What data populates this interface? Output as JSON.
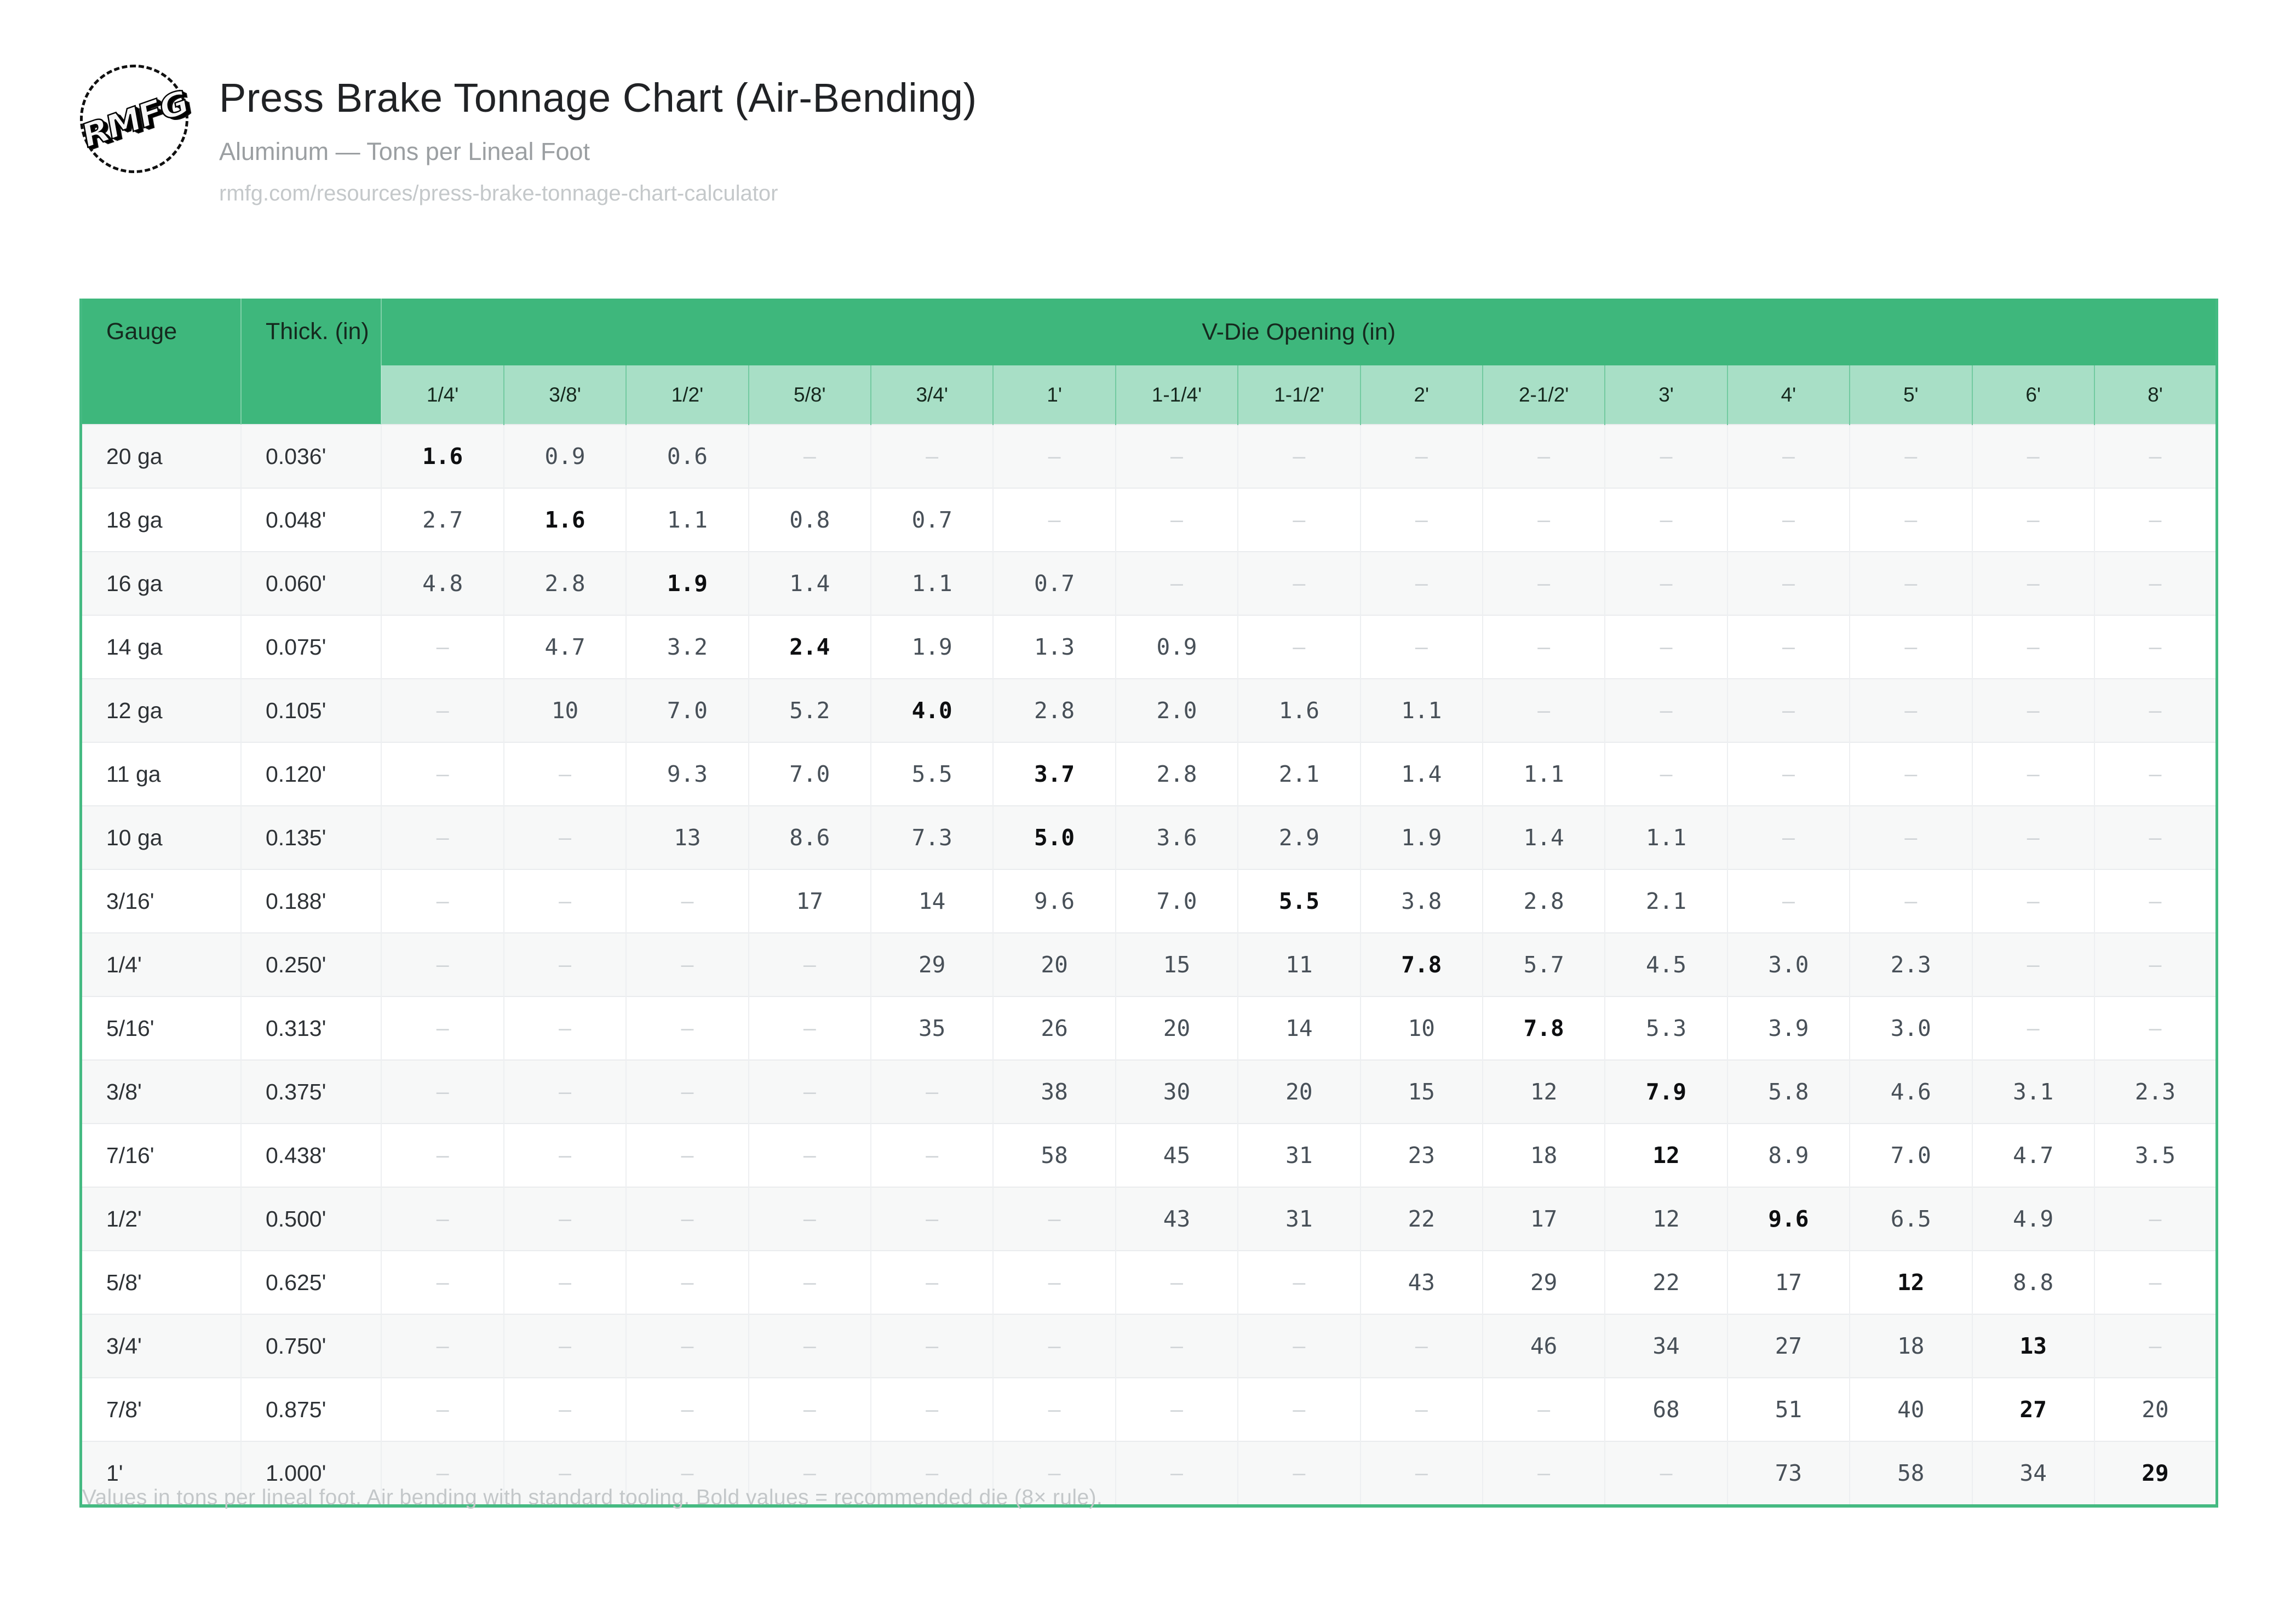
{
  "header": {
    "logo_text": "RMFG",
    "title": "Press Brake Tonnage Chart (Air-Bending)",
    "subtitle": "Aluminum — Tons per Lineal Foot",
    "url": "rmfg.com/resources/press-brake-tonnage-chart-calculator"
  },
  "table": {
    "col_gauge": "Gauge",
    "col_thickness": "Thick. (in)",
    "col_group": "V-Die Opening (in)",
    "die_openings": [
      "1/4'",
      "3/8'",
      "1/2'",
      "5/8'",
      "3/4'",
      "1'",
      "1-1/4'",
      "1-1/2'",
      "2'",
      "2-1/2'",
      "3'",
      "4'",
      "5'",
      "6'",
      "8'"
    ],
    "empty_marker": "–",
    "rows": [
      {
        "gauge": "20 ga",
        "thickness": "0.036'",
        "bold_index": 0,
        "values": [
          "1.6",
          "0.9",
          "0.6",
          "",
          "",
          "",
          "",
          "",
          "",
          "",
          "",
          "",
          "",
          "",
          ""
        ]
      },
      {
        "gauge": "18 ga",
        "thickness": "0.048'",
        "bold_index": 1,
        "values": [
          "2.7",
          "1.6",
          "1.1",
          "0.8",
          "0.7",
          "",
          "",
          "",
          "",
          "",
          "",
          "",
          "",
          "",
          ""
        ]
      },
      {
        "gauge": "16 ga",
        "thickness": "0.060'",
        "bold_index": 2,
        "values": [
          "4.8",
          "2.8",
          "1.9",
          "1.4",
          "1.1",
          "0.7",
          "",
          "",
          "",
          "",
          "",
          "",
          "",
          "",
          ""
        ]
      },
      {
        "gauge": "14 ga",
        "thickness": "0.075'",
        "bold_index": 3,
        "values": [
          "",
          "4.7",
          "3.2",
          "2.4",
          "1.9",
          "1.3",
          "0.9",
          "",
          "",
          "",
          "",
          "",
          "",
          "",
          ""
        ]
      },
      {
        "gauge": "12 ga",
        "thickness": "0.105'",
        "bold_index": 4,
        "values": [
          "",
          "10",
          "7.0",
          "5.2",
          "4.0",
          "2.8",
          "2.0",
          "1.6",
          "1.1",
          "",
          "",
          "",
          "",
          "",
          ""
        ]
      },
      {
        "gauge": "11 ga",
        "thickness": "0.120'",
        "bold_index": 5,
        "values": [
          "",
          "",
          "9.3",
          "7.0",
          "5.5",
          "3.7",
          "2.8",
          "2.1",
          "1.4",
          "1.1",
          "",
          "",
          "",
          "",
          ""
        ]
      },
      {
        "gauge": "10 ga",
        "thickness": "0.135'",
        "bold_index": 5,
        "values": [
          "",
          "",
          "13",
          "8.6",
          "7.3",
          "5.0",
          "3.6",
          "2.9",
          "1.9",
          "1.4",
          "1.1",
          "",
          "",
          "",
          ""
        ]
      },
      {
        "gauge": "3/16'",
        "thickness": "0.188'",
        "bold_index": 7,
        "values": [
          "",
          "",
          "",
          "17",
          "14",
          "9.6",
          "7.0",
          "5.5",
          "3.8",
          "2.8",
          "2.1",
          "",
          "",
          "",
          ""
        ]
      },
      {
        "gauge": "1/4'",
        "thickness": "0.250'",
        "bold_index": 8,
        "values": [
          "",
          "",
          "",
          "",
          "29",
          "20",
          "15",
          "11",
          "7.8",
          "5.7",
          "4.5",
          "3.0",
          "2.3",
          "",
          ""
        ]
      },
      {
        "gauge": "5/16'",
        "thickness": "0.313'",
        "bold_index": 9,
        "values": [
          "",
          "",
          "",
          "",
          "35",
          "26",
          "20",
          "14",
          "10",
          "7.8",
          "5.3",
          "3.9",
          "3.0",
          "",
          ""
        ]
      },
      {
        "gauge": "3/8'",
        "thickness": "0.375'",
        "bold_index": 10,
        "values": [
          "",
          "",
          "",
          "",
          "",
          "38",
          "30",
          "20",
          "15",
          "12",
          "7.9",
          "5.8",
          "4.6",
          "3.1",
          "2.3"
        ]
      },
      {
        "gauge": "7/16'",
        "thickness": "0.438'",
        "bold_index": 10,
        "values": [
          "",
          "",
          "",
          "",
          "",
          "58",
          "45",
          "31",
          "23",
          "18",
          "12",
          "8.9",
          "7.0",
          "4.7",
          "3.5"
        ]
      },
      {
        "gauge": "1/2'",
        "thickness": "0.500'",
        "bold_index": 11,
        "values": [
          "",
          "",
          "",
          "",
          "",
          "",
          "43",
          "31",
          "22",
          "17",
          "12",
          "9.6",
          "6.5",
          "4.9",
          ""
        ]
      },
      {
        "gauge": "5/8'",
        "thickness": "0.625'",
        "bold_index": 12,
        "values": [
          "",
          "",
          "",
          "",
          "",
          "",
          "",
          "",
          "43",
          "29",
          "22",
          "17",
          "12",
          "8.8",
          ""
        ]
      },
      {
        "gauge": "3/4'",
        "thickness": "0.750'",
        "bold_index": 13,
        "values": [
          "",
          "",
          "",
          "",
          "",
          "",
          "",
          "",
          "",
          "46",
          "34",
          "27",
          "18",
          "13",
          ""
        ]
      },
      {
        "gauge": "7/8'",
        "thickness": "0.875'",
        "bold_index": 13,
        "values": [
          "",
          "",
          "",
          "",
          "",
          "",
          "",
          "",
          "",
          "",
          "68",
          "51",
          "40",
          "27",
          "20"
        ]
      },
      {
        "gauge": "1'",
        "thickness": "1.000'",
        "bold_index": 14,
        "values": [
          "",
          "",
          "",
          "",
          "",
          "",
          "",
          "",
          "",
          "",
          "",
          "73",
          "58",
          "34",
          "29"
        ]
      }
    ]
  },
  "footer": {
    "note": "Values in tons per lineal foot. Air bending with standard tooling. Bold values = recommended die (8× rule)."
  },
  "colors": {
    "header_green": "#3eb77c",
    "subheader_green": "#a8dfc6",
    "accent_border": "#45ba82",
    "zebra_row": "#f7f8f8",
    "bold_value": "#0e0f11",
    "value_gray": "#485058",
    "empty_dash": "#d0d4d7"
  }
}
